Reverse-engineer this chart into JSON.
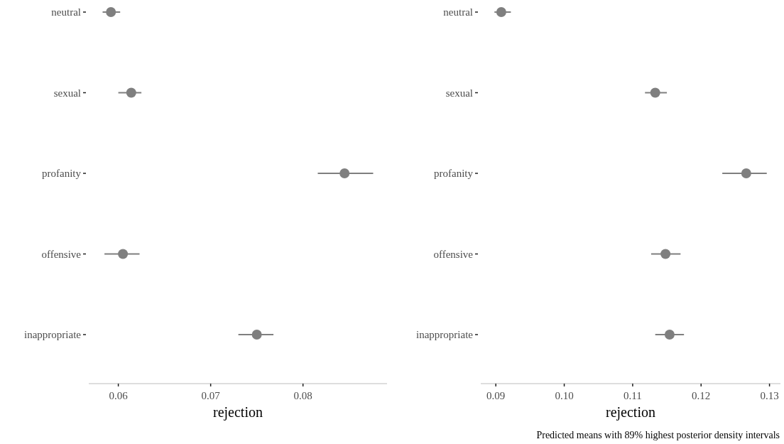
{
  "chart_data": [
    {
      "type": "scatter",
      "orientation": "horizontal",
      "marker": "circle",
      "grid": false,
      "categories": [
        "neutral",
        "sexual",
        "profanity",
        "offensive",
        "inappropriate"
      ],
      "color": "#7f7f7f",
      "values": [
        0.0592,
        0.0614,
        0.0845,
        0.0605,
        0.075
      ],
      "errors": [
        [
          0.0583,
          0.0602
        ],
        [
          0.06,
          0.0625
        ],
        [
          0.0816,
          0.0876
        ],
        [
          0.0585,
          0.0623
        ],
        [
          0.073,
          0.0768
        ]
      ],
      "xlim": [
        0.0568,
        0.0891
      ],
      "xticks": [
        0.06,
        0.07,
        0.08
      ],
      "xlabel": "rejection"
    },
    {
      "type": "scatter",
      "orientation": "horizontal",
      "marker": "circle",
      "grid": false,
      "categories": [
        "neutral",
        "sexual",
        "profanity",
        "offensive",
        "inappropriate"
      ],
      "color": "#7f7f7f",
      "values": [
        0.0908,
        0.1133,
        0.1266,
        0.1148,
        0.1154
      ],
      "errors": [
        [
          0.0898,
          0.0922
        ],
        [
          0.1118,
          0.115
        ],
        [
          0.1231,
          0.1296
        ],
        [
          0.1127,
          0.117
        ],
        [
          0.1133,
          0.1175
        ]
      ],
      "xlim": [
        0.0878,
        0.1316
      ],
      "xticks": [
        0.09,
        {
          "value": 0.1,
          "label": "0.10"
        },
        0.11,
        0.12,
        0.13
      ],
      "xlabel": "rejection",
      "annotations": [
        "Predicted means with 89% highest posterior density intervals"
      ]
    }
  ]
}
